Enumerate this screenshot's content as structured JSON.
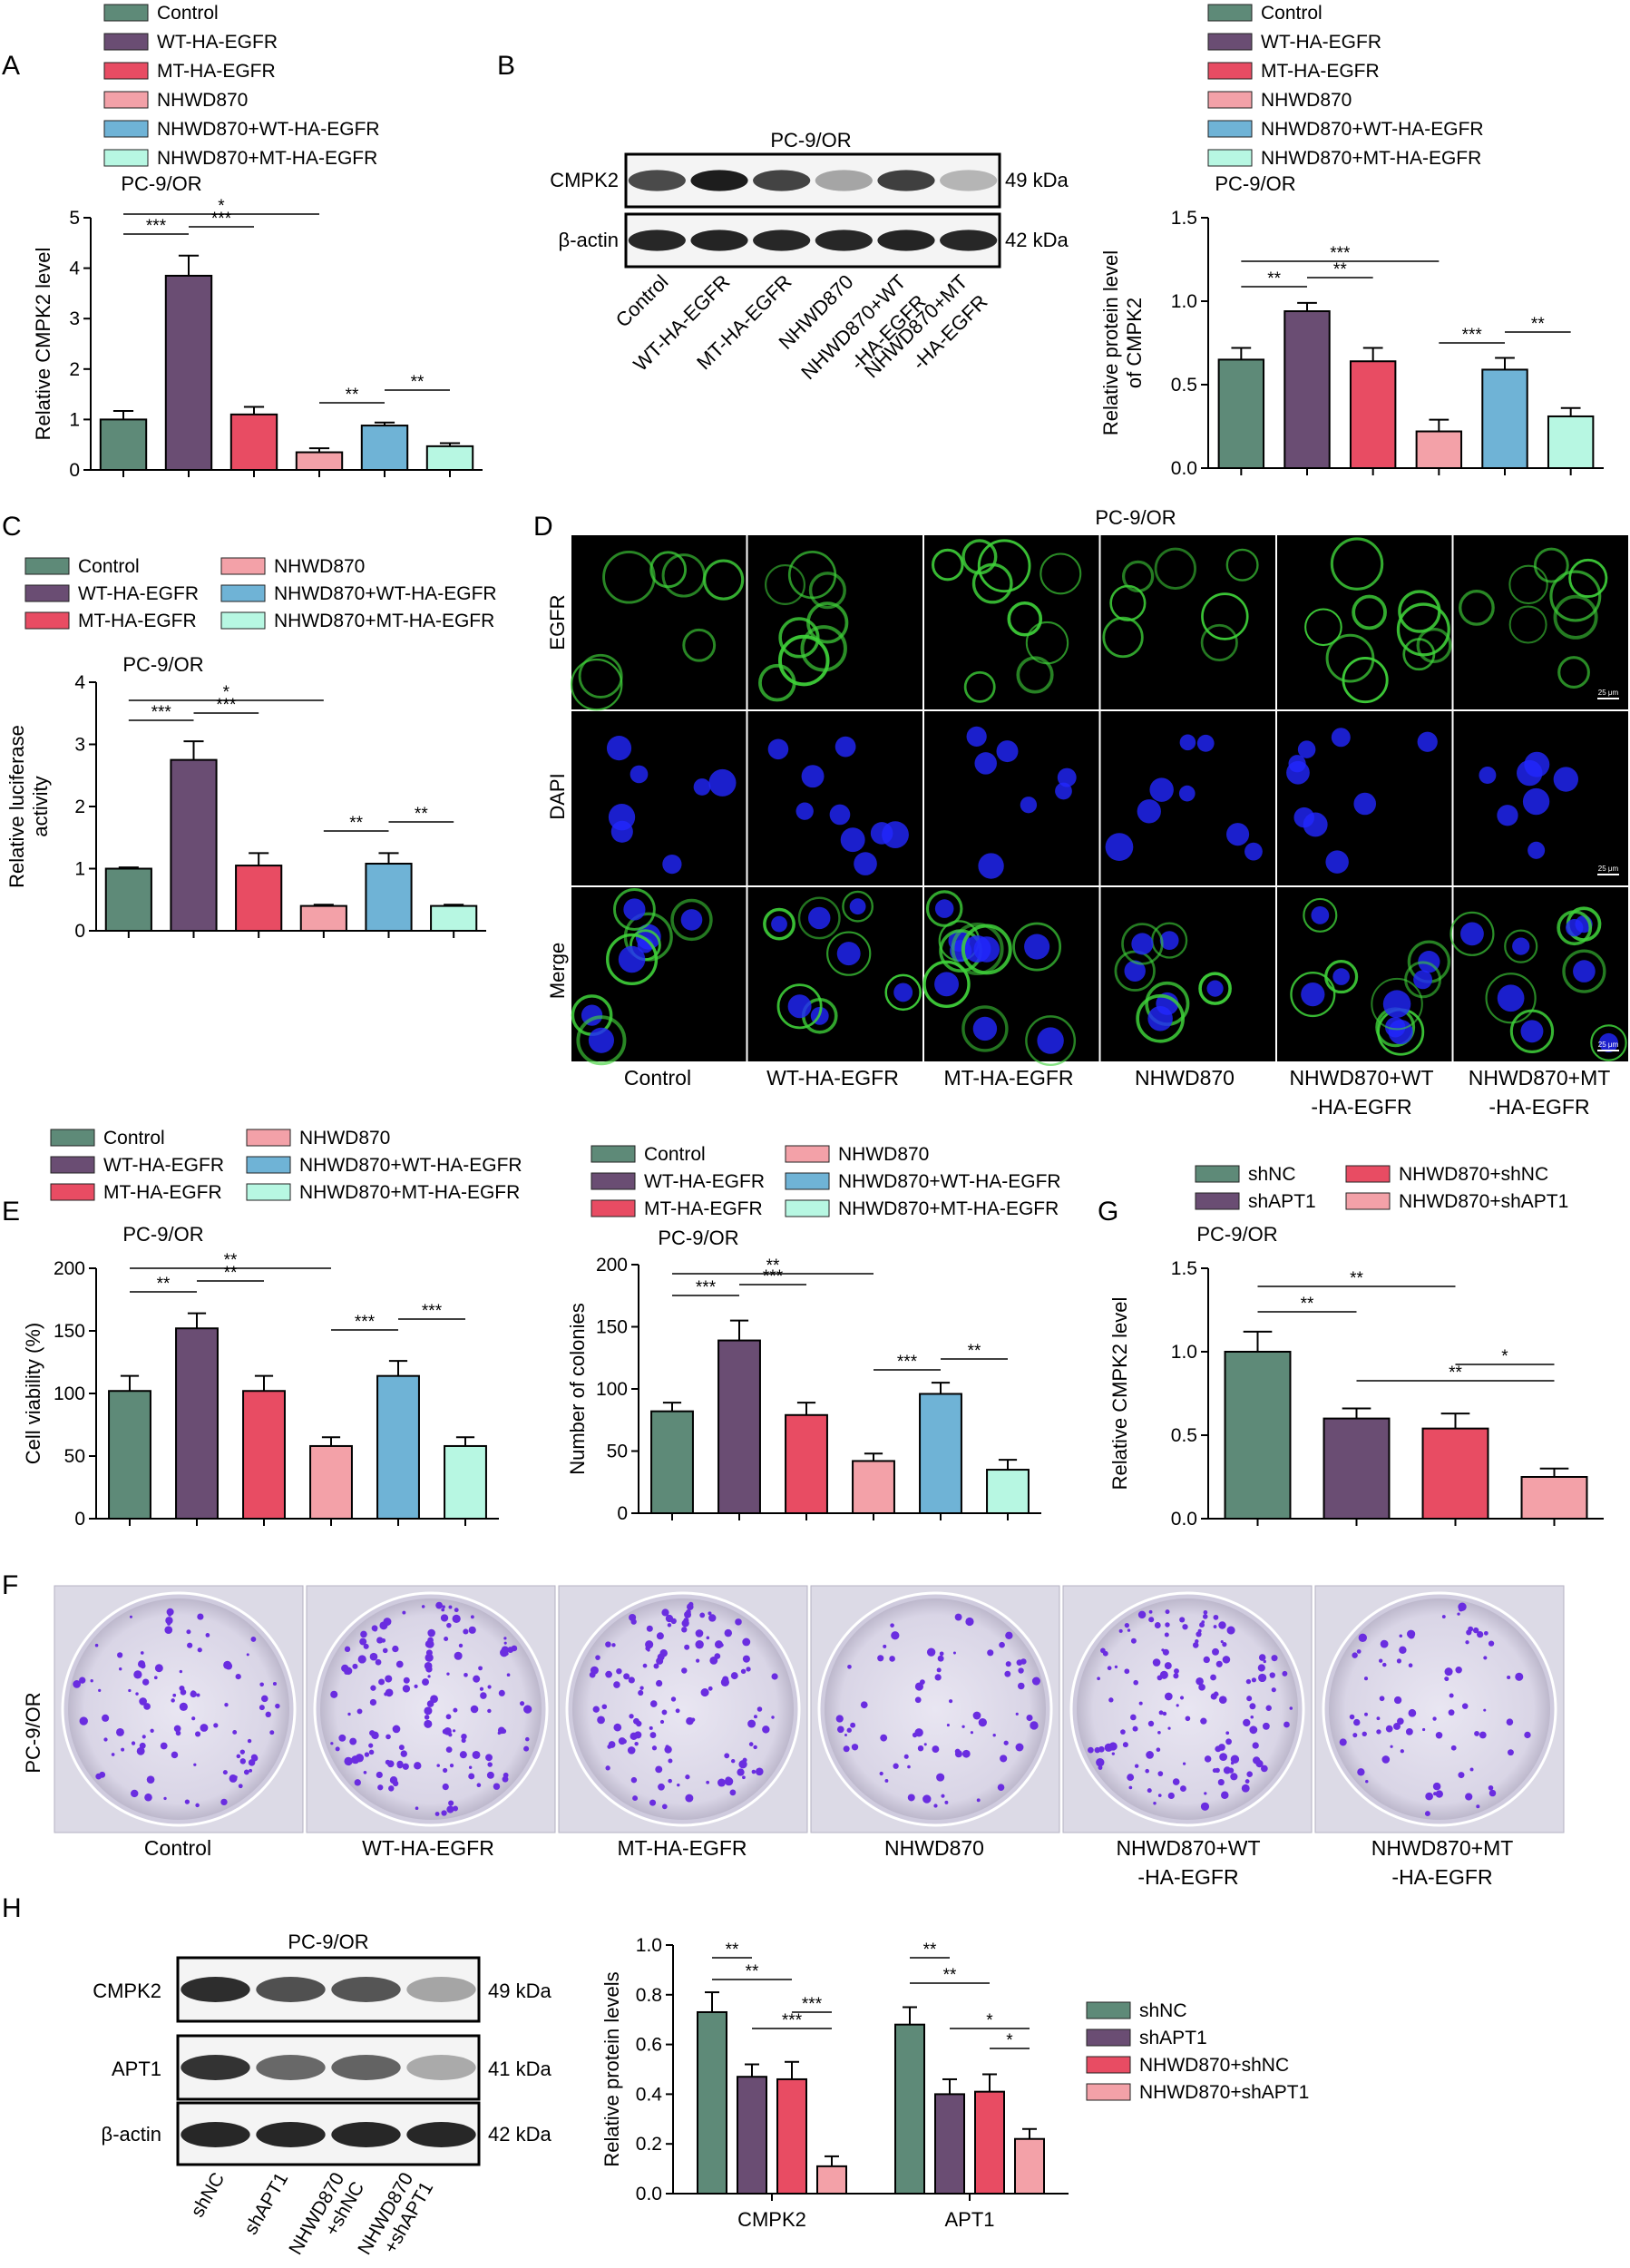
{
  "colors": {
    "control": "#5e8a78",
    "wt": "#6a4d73",
    "mt": "#e84c63",
    "nhwd": "#f3a1a8",
    "nhwd_wt": "#6fb3d6",
    "nhwd_mt": "#b7f7e2",
    "egfr_stain": "#3fd23a",
    "dapi_stain": "#2227ff",
    "colony": "#6a2de0"
  },
  "legend_6": [
    "Control",
    "WT-HA-EGFR",
    "MT-HA-EGFR",
    "NHWD870",
    "NHWD870+WT-HA-EGFR",
    "NHWD870+MT-HA-EGFR"
  ],
  "legend_4": [
    "shNC",
    "shAPT1",
    "NHWD870+shNC",
    "NHWD870+shAPT1"
  ],
  "panels": {
    "A": {
      "letter": "A",
      "cell_line": "PC-9/OR",
      "ylabel": "Relative CMPK2 level"
    },
    "B": {
      "letter": "B",
      "blot_title": "PC-9/OR",
      "bands": [
        "CMPK2",
        "β-actin"
      ],
      "sizes": [
        "49 kDa",
        "42 kDa"
      ],
      "lanes": [
        "Control",
        "WT-HA-EGFR",
        "MT-HA-EGFR",
        "NHWD870",
        "NHWD870+WT",
        "-HA-EGFR",
        "NHWD870+MT",
        "-HA-EGFR"
      ],
      "cell_line": "PC-9/OR",
      "ylabel_1": "Relative protein level",
      "ylabel_2": "of CMPK2"
    },
    "C": {
      "letter": "C",
      "cell_line": "PC-9/OR",
      "ylabel_1": "Relative luciferase",
      "ylabel_2": "activity"
    },
    "D": {
      "letter": "D",
      "title": "PC-9/OR",
      "rows": [
        "EGFR",
        "DAPI",
        "Merge"
      ],
      "scale": "25 μm",
      "columns": [
        "Control",
        "WT-HA-EGFR",
        "MT-HA-EGFR",
        "NHWD870",
        "NHWD870+WT",
        "-HA-EGFR",
        "NHWD870+MT",
        "-HA-EGFR"
      ]
    },
    "E": {
      "letter": "E",
      "cell_line": "PC-9/OR",
      "ylabel": "Cell viability (%)"
    },
    "E2": {
      "cell_line": "PC-9/OR",
      "ylabel": "Number of colonies"
    },
    "G": {
      "letter": "G",
      "cell_line": "PC-9/OR",
      "ylabel": "Relative CMPK2 level"
    },
    "F": {
      "letter": "F",
      "row_label": "PC-9/OR",
      "columns": [
        "Control",
        "WT-HA-EGFR",
        "MT-HA-EGFR",
        "NHWD870",
        "NHWD870+WT",
        "-HA-EGFR",
        "NHWD870+MT",
        "-HA-EGFR"
      ]
    },
    "H": {
      "letter": "H",
      "blot_title": "PC-9/OR",
      "bands": [
        "CMPK2",
        "APT1",
        "β-actin"
      ],
      "sizes": [
        "49 kDa",
        "41 kDa",
        "42 kDa"
      ],
      "lanes": [
        "shNC",
        "shAPT1",
        "NHWD870",
        "+shNC",
        "NHWD870",
        "+shAPT1"
      ],
      "ylabel": "Relative protein levels"
    }
  },
  "chart_data": [
    {
      "id": "A",
      "type": "bar",
      "categories": [
        "Control",
        "WT-HA-EGFR",
        "MT-HA-EGFR",
        "NHWD870",
        "NHWD870+WT-HA-EGFR",
        "NHWD870+MT-HA-EGFR"
      ],
      "values": [
        1.0,
        3.85,
        1.1,
        0.35,
        0.88,
        0.47
      ],
      "errors": [
        0.17,
        0.4,
        0.15,
        0.08,
        0.06,
        0.06
      ],
      "ylim": [
        0,
        5
      ],
      "yticks": [
        "0",
        "1",
        "2",
        "3",
        "4",
        "5"
      ],
      "ylabel": "Relative CMPK2 level",
      "brackets": [
        {
          "a": 0,
          "b": 1,
          "label": "***"
        },
        {
          "a": 1,
          "b": 2,
          "label": "***"
        },
        {
          "a": 0,
          "b": 3,
          "label": "*"
        },
        {
          "a": 3,
          "b": 4,
          "label": "**"
        },
        {
          "a": 4,
          "b": 5,
          "label": "**"
        }
      ]
    },
    {
      "id": "B",
      "type": "bar",
      "categories": [
        "Control",
        "WT-HA-EGFR",
        "MT-HA-EGFR",
        "NHWD870",
        "NHWD870+WT-HA-EGFR",
        "NHWD870+MT-HA-EGFR"
      ],
      "values": [
        0.65,
        0.94,
        0.64,
        0.22,
        0.59,
        0.31
      ],
      "errors": [
        0.07,
        0.05,
        0.08,
        0.07,
        0.07,
        0.05
      ],
      "ylim": [
        0,
        1.5
      ],
      "yticks": [
        "0.0",
        "0.5",
        "1.0",
        "1.5"
      ],
      "ylabel": "Relative protein level of CMPK2",
      "brackets": [
        {
          "a": 0,
          "b": 1,
          "label": "**"
        },
        {
          "a": 1,
          "b": 2,
          "label": "**"
        },
        {
          "a": 0,
          "b": 3,
          "label": "***"
        },
        {
          "a": 3,
          "b": 4,
          "label": "***"
        },
        {
          "a": 4,
          "b": 5,
          "label": "**"
        }
      ]
    },
    {
      "id": "C",
      "type": "bar",
      "categories": [
        "Control",
        "WT-HA-EGFR",
        "MT-HA-EGFR",
        "NHWD870",
        "NHWD870+WT-HA-EGFR",
        "NHWD870+MT-HA-EGFR"
      ],
      "values": [
        1.0,
        2.75,
        1.05,
        0.4,
        1.08,
        0.4
      ],
      "errors": [
        0.02,
        0.3,
        0.2,
        0.02,
        0.17,
        0.02
      ],
      "ylim": [
        0,
        4
      ],
      "yticks": [
        "0",
        "1",
        "2",
        "3",
        "4"
      ],
      "ylabel": "Relative luciferase activity",
      "brackets": [
        {
          "a": 0,
          "b": 1,
          "label": "***"
        },
        {
          "a": 1,
          "b": 2,
          "label": "***"
        },
        {
          "a": 0,
          "b": 3,
          "label": "*"
        },
        {
          "a": 3,
          "b": 4,
          "label": "**"
        },
        {
          "a": 4,
          "b": 5,
          "label": "**"
        }
      ]
    },
    {
      "id": "E1",
      "type": "bar",
      "categories": [
        "Control",
        "WT-HA-EGFR",
        "MT-HA-EGFR",
        "NHWD870",
        "NHWD870+WT-HA-EGFR",
        "NHWD870+MT-HA-EGFR"
      ],
      "values": [
        102,
        152,
        102,
        58,
        114,
        58
      ],
      "errors": [
        12,
        12,
        12,
        7,
        12,
        7
      ],
      "ylim": [
        0,
        200
      ],
      "yticks": [
        "0",
        "50",
        "100",
        "150",
        "200"
      ],
      "ylabel": "Cell viability (%)",
      "brackets": [
        {
          "a": 0,
          "b": 1,
          "label": "**"
        },
        {
          "a": 1,
          "b": 2,
          "label": "**"
        },
        {
          "a": 0,
          "b": 3,
          "label": "**"
        },
        {
          "a": 3,
          "b": 4,
          "label": "***"
        },
        {
          "a": 4,
          "b": 5,
          "label": "***"
        }
      ]
    },
    {
      "id": "E2",
      "type": "bar",
      "categories": [
        "Control",
        "WT-HA-EGFR",
        "MT-HA-EGFR",
        "NHWD870",
        "NHWD870+WT-HA-EGFR",
        "NHWD870+MT-HA-EGFR"
      ],
      "values": [
        82,
        139,
        79,
        42,
        96,
        35
      ],
      "errors": [
        7,
        16,
        10,
        6,
        9,
        8
      ],
      "ylim": [
        0,
        200
      ],
      "yticks": [
        "0",
        "50",
        "100",
        "150",
        "200"
      ],
      "ylabel": "Number of colonies",
      "brackets": [
        {
          "a": 0,
          "b": 1,
          "label": "***"
        },
        {
          "a": 1,
          "b": 2,
          "label": "***"
        },
        {
          "a": 0,
          "b": 3,
          "label": "**"
        },
        {
          "a": 3,
          "b": 4,
          "label": "***"
        },
        {
          "a": 4,
          "b": 5,
          "label": "**"
        }
      ]
    },
    {
      "id": "G",
      "type": "bar",
      "categories": [
        "shNC",
        "shAPT1",
        "NHWD870+shNC",
        "NHWD870+shAPT1"
      ],
      "values": [
        1.0,
        0.6,
        0.54,
        0.25
      ],
      "errors": [
        0.12,
        0.06,
        0.09,
        0.05
      ],
      "ylim": [
        0,
        1.5
      ],
      "yticks": [
        "0.0",
        "0.5",
        "1.0",
        "1.5"
      ],
      "ylabel": "Relative CMPK2 level",
      "brackets": [
        {
          "a": 0,
          "b": 1,
          "label": "**"
        },
        {
          "a": 0,
          "b": 2,
          "label": "**"
        },
        {
          "a": 1,
          "b": 3,
          "label": "**"
        },
        {
          "a": 2,
          "b": 3,
          "label": "*"
        }
      ]
    },
    {
      "id": "H",
      "type": "bar",
      "categories": [
        "CMPK2",
        "APT1"
      ],
      "series": [
        {
          "name": "shNC",
          "values": [
            0.73,
            0.68
          ],
          "errors": [
            0.08,
            0.07
          ]
        },
        {
          "name": "shAPT1",
          "values": [
            0.47,
            0.4
          ],
          "errors": [
            0.05,
            0.06
          ]
        },
        {
          "name": "NHWD870+shNC",
          "values": [
            0.46,
            0.41
          ],
          "errors": [
            0.07,
            0.07
          ]
        },
        {
          "name": "NHWD870+shAPT1",
          "values": [
            0.11,
            0.22
          ],
          "errors": [
            0.04,
            0.04
          ]
        }
      ],
      "ylim": [
        0,
        1.0
      ],
      "yticks": [
        "0.0",
        "0.2",
        "0.4",
        "0.6",
        "0.8",
        "1.0"
      ],
      "ylabel": "Relative protein levels",
      "brackets": [
        {
          "g": 0,
          "a": 0,
          "b": 1,
          "label": "**"
        },
        {
          "g": 0,
          "a": 0,
          "b": 2,
          "label": "**"
        },
        {
          "g": 0,
          "a": 1,
          "b": 3,
          "label": "***"
        },
        {
          "g": 0,
          "a": 2,
          "b": 3,
          "label": "***"
        },
        {
          "g": 1,
          "a": 0,
          "b": 1,
          "label": "**"
        },
        {
          "g": 1,
          "a": 0,
          "b": 2,
          "label": "**"
        },
        {
          "g": 1,
          "a": 1,
          "b": 3,
          "label": "*"
        },
        {
          "g": 1,
          "a": 2,
          "b": 3,
          "label": "*"
        }
      ]
    }
  ]
}
